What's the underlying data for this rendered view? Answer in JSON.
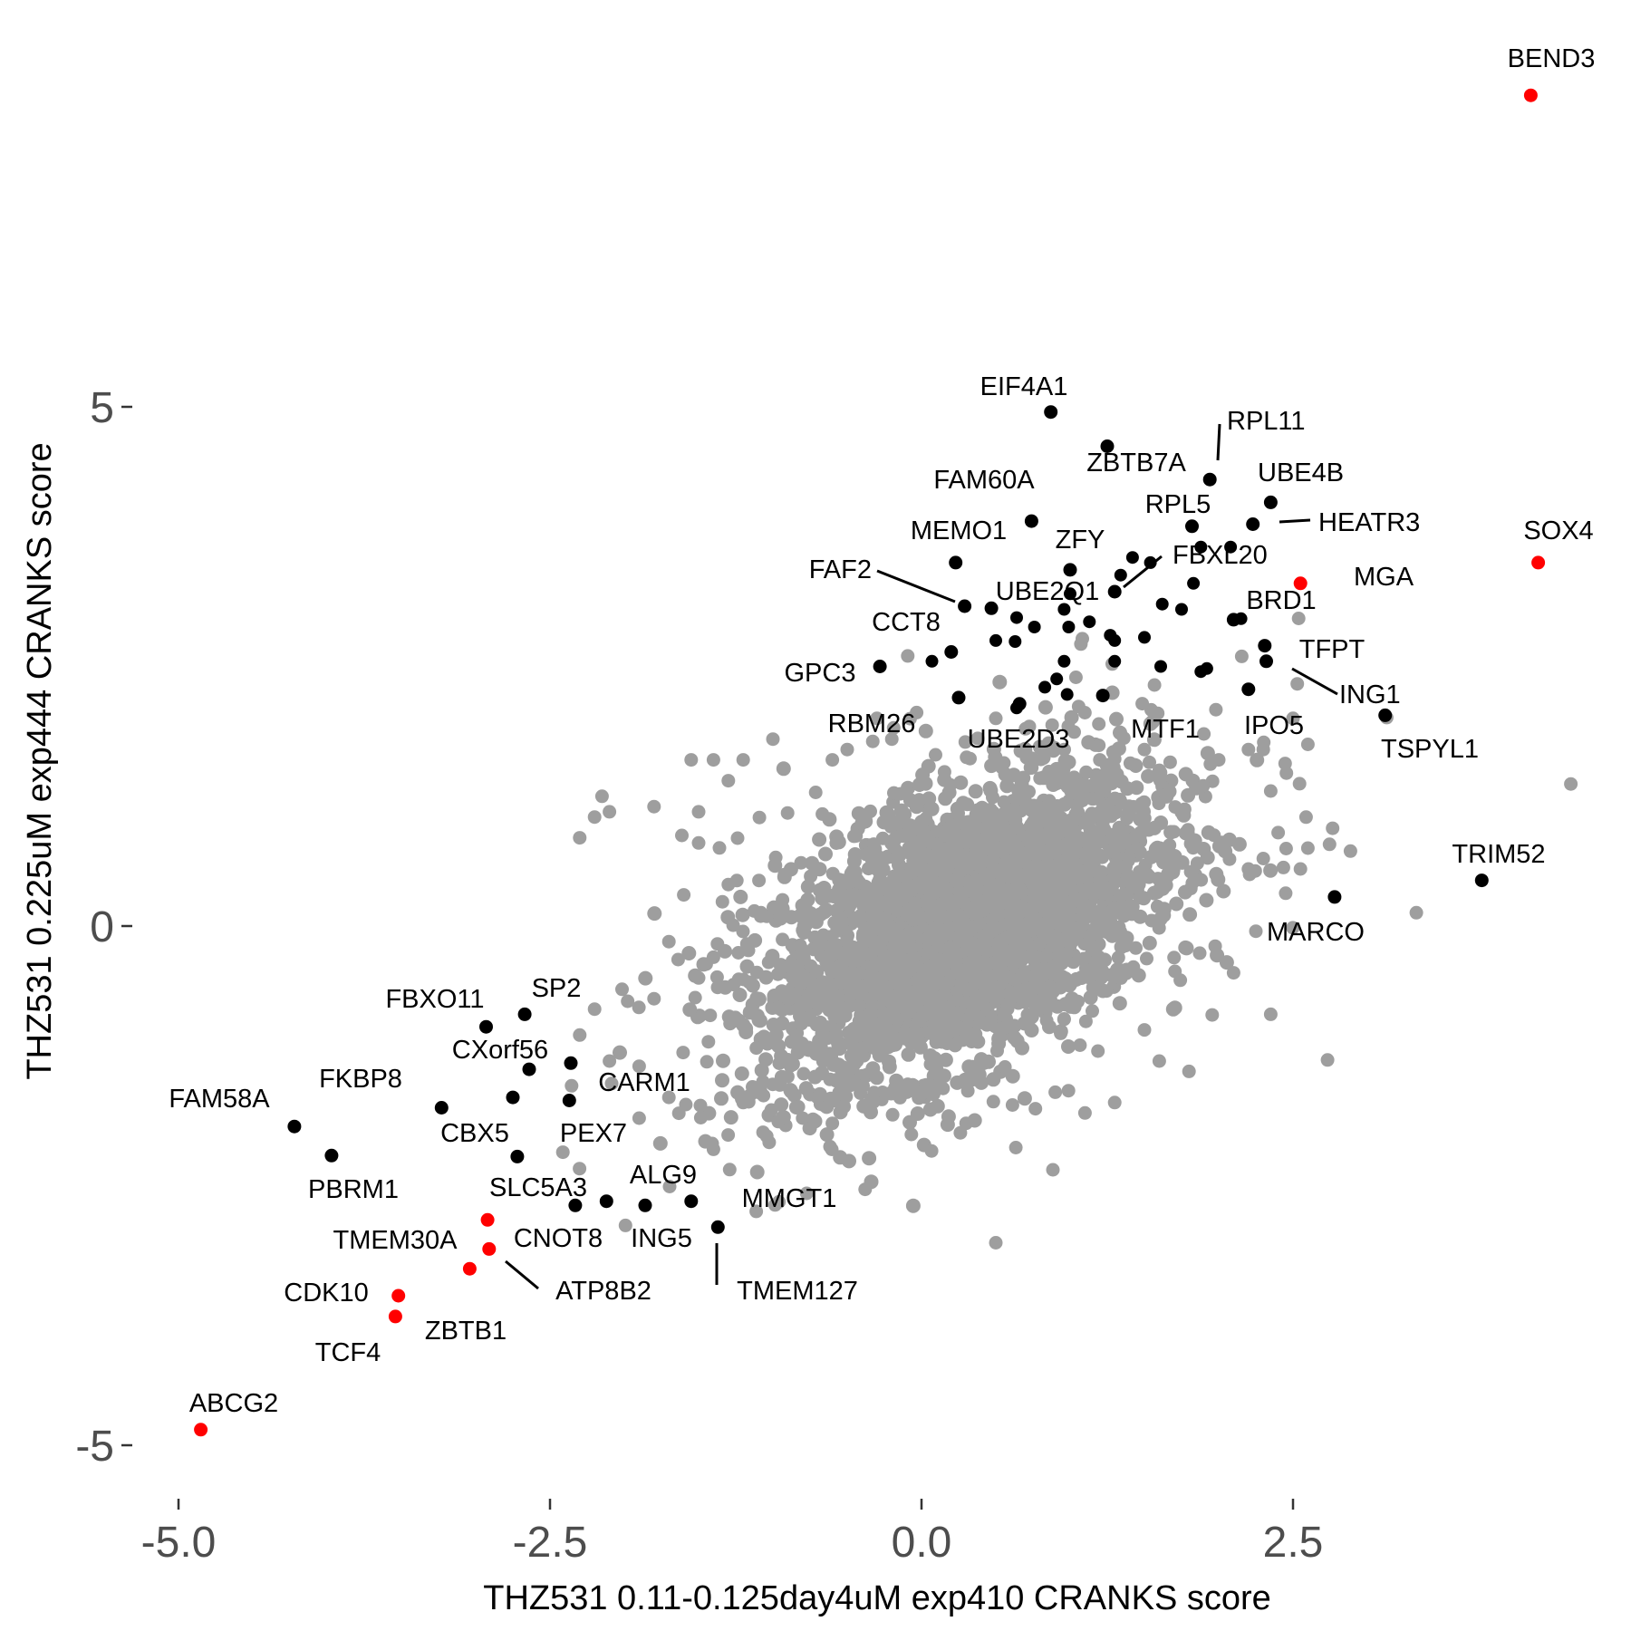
{
  "chart_data": {
    "type": "scatter",
    "title": "",
    "xlabel": "THZ531 0.11-0.125day4uM exp410 CRANKS score",
    "ylabel": "THZ531 0.225uM exp444 CRANKS score",
    "xlim": [
      -5.3,
      4.7
    ],
    "ylim": [
      -5.4,
      8.4
    ],
    "x_ticks": [
      {
        "value": -5,
        "label": "-5.0"
      },
      {
        "value": -2.5,
        "label": "-2.5"
      },
      {
        "value": 0,
        "label": "0.0"
      },
      {
        "value": 2.5,
        "label": "2.5"
      }
    ],
    "y_ticks": [
      {
        "value": -5,
        "label": "-5"
      },
      {
        "value": 0,
        "label": "0"
      },
      {
        "value": 5,
        "label": "5"
      }
    ],
    "grid": false,
    "legend": "none",
    "colors": {
      "background": "#9e9e9e",
      "labeled": "#000000",
      "highlighted": "#ff0000"
    },
    "background_cloud": {
      "description_points": 1,
      "center": [
        0.3,
        0.0
      ],
      "points": [
        [
          -2.1,
          1.1
        ],
        [
          -2.2,
          1.05
        ],
        [
          -2.3,
          0.85
        ],
        [
          -2.15,
          1.25
        ],
        [
          -1.55,
          1.6
        ],
        [
          -1.4,
          1.6
        ],
        [
          -1.5,
          1.1
        ],
        [
          -1.8,
          1.15
        ],
        [
          -1.3,
          1.4
        ],
        [
          -1.2,
          1.6
        ],
        [
          -1.0,
          1.8
        ],
        [
          -0.6,
          1.6
        ],
        [
          -0.5,
          1.7
        ],
        [
          -0.3,
          2.0
        ],
        [
          -0.2,
          1.8
        ],
        [
          0.5,
          2.0
        ],
        [
          0.7,
          1.9
        ],
        [
          1.2,
          1.6
        ],
        [
          1.5,
          1.7
        ],
        [
          1.6,
          1.5
        ],
        [
          1.9,
          1.85
        ],
        [
          2.0,
          1.6
        ],
        [
          2.2,
          1.7
        ],
        [
          2.3,
          1.7
        ],
        [
          2.5,
          2.0
        ],
        [
          2.6,
          1.75
        ],
        [
          2.35,
          1.3
        ],
        [
          2.4,
          0.9
        ],
        [
          2.6,
          0.75
        ],
        [
          2.55,
          0.55
        ],
        [
          2.3,
          0.65
        ],
        [
          2.2,
          0.55
        ],
        [
          2.25,
          -0.05
        ],
        [
          2.1,
          -0.45
        ],
        [
          2.35,
          -0.85
        ],
        [
          0.5,
          -3.05
        ],
        [
          -1.3,
          0.4
        ],
        [
          -1.4,
          -0.3
        ],
        [
          -1.5,
          -0.5
        ],
        [
          -1.6,
          0.3
        ],
        [
          -1.7,
          -0.15
        ],
        [
          -1.8,
          -0.7
        ],
        [
          -2.2,
          -0.8
        ],
        [
          -2.3,
          -1.05
        ],
        [
          -2.1,
          -1.3
        ],
        [
          -1.9,
          -1.35
        ],
        [
          -1.7,
          -1.65
        ],
        [
          -1.2,
          -1.7
        ],
        [
          -1.9,
          -1.85
        ],
        [
          -1.4,
          -2.15
        ],
        [
          -1.1,
          -1.6
        ],
        [
          -0.6,
          -1.9
        ],
        [
          -0.8,
          -1.85
        ],
        [
          -0.1,
          -1.6
        ],
        [
          0.3,
          -1.9
        ],
        [
          0.9,
          -1.6
        ],
        [
          1.1,
          -1.8
        ],
        [
          1.3,
          -1.7
        ],
        [
          1.6,
          -1.3
        ],
        [
          1.8,
          -1.4
        ],
        [
          1.5,
          -1.0
        ],
        [
          -0.9,
          -1.45
        ],
        [
          -0.7,
          -1.65
        ],
        [
          -1.5,
          0.8
        ]
      ]
    },
    "labeled_points": [
      {
        "gene": "BEND3",
        "x": 4.1,
        "y": 8.0,
        "highlight": true
      },
      {
        "gene": "SOX4",
        "x": 4.15,
        "y": 3.5,
        "highlight": true
      },
      {
        "gene": "MGA",
        "x": 2.55,
        "y": 3.3,
        "highlight": true
      },
      {
        "gene": "EIF4A1",
        "x": 0.87,
        "y": 4.95
      },
      {
        "gene": "RPL11",
        "x": 1.94,
        "y": 4.3
      },
      {
        "gene": "ZBTB7A",
        "x": 1.25,
        "y": 4.62
      },
      {
        "gene": "UBE4B",
        "x": 2.35,
        "y": 4.08
      },
      {
        "gene": "HEATR3",
        "x": 2.23,
        "y": 3.87
      },
      {
        "gene": "FAM60A",
        "x": 0.74,
        "y": 3.9
      },
      {
        "gene": "RPL5",
        "x": 1.82,
        "y": 3.85
      },
      {
        "gene": "MEMO1",
        "x": 0.23,
        "y": 3.5
      },
      {
        "gene": "ZFY",
        "x": 1.0,
        "y": 3.43
      },
      {
        "gene": "FBXL20",
        "x": 1.3,
        "y": 3.22
      },
      {
        "gene": "FAF2",
        "x": 0.29,
        "y": 3.08
      },
      {
        "gene": "UBE2Q1",
        "x": 0.47,
        "y": 3.06
      },
      {
        "gene": "CCT8",
        "x": 0.2,
        "y": 2.64
      },
      {
        "gene": "BRD1",
        "x": 2.1,
        "y": 2.95
      },
      {
        "gene": "TFPT",
        "x": 2.31,
        "y": 2.7
      },
      {
        "gene": "ING1",
        "x": 2.32,
        "y": 2.55
      },
      {
        "gene": "GPC3",
        "x": -0.28,
        "y": 2.5
      },
      {
        "gene": "RBM26",
        "x": 0.25,
        "y": 2.2
      },
      {
        "gene": "UBE2D3",
        "x": 0.66,
        "y": 2.14
      },
      {
        "gene": "MTF1",
        "x": 1.22,
        "y": 2.22
      },
      {
        "gene": "IPO5",
        "x": 2.2,
        "y": 2.28
      },
      {
        "gene": "TSPYL1",
        "x": 3.12,
        "y": 2.03
      },
      {
        "gene": "TRIM52",
        "x": 3.77,
        "y": 0.44
      },
      {
        "gene": "MARCO",
        "x": 2.78,
        "y": 0.28
      },
      {
        "gene": "FBXO11",
        "x": -2.93,
        "y": -0.97
      },
      {
        "gene": "SP2",
        "x": -2.67,
        "y": -0.85
      },
      {
        "gene": "CXorf56",
        "x": -2.64,
        "y": -1.38
      },
      {
        "gene": "CARM1",
        "x": -2.36,
        "y": -1.32
      },
      {
        "gene": "FKBP8",
        "x": -2.75,
        "y": -1.65
      },
      {
        "gene": "FAM58A",
        "x": -4.22,
        "y": -1.93
      },
      {
        "gene": "CBX5",
        "x": -3.23,
        "y": -1.75
      },
      {
        "gene": "PEX7",
        "x": -2.37,
        "y": -1.68
      },
      {
        "gene": "PBRM1",
        "x": -3.97,
        "y": -2.21
      },
      {
        "gene": "SLC5A3",
        "x": -2.72,
        "y": -2.22
      },
      {
        "gene": "ALG9",
        "x": -1.55,
        "y": -2.65
      },
      {
        "gene": "MMGT1",
        "x": -1.86,
        "y": -2.69
      },
      {
        "gene": "ING5",
        "x": -2.12,
        "y": -2.65
      },
      {
        "gene": "CNOT8",
        "x": -2.33,
        "y": -2.69
      },
      {
        "gene": "TMEM127",
        "x": -1.37,
        "y": -2.9
      },
      {
        "gene": "TMEM30A",
        "x": -2.92,
        "y": -2.83,
        "highlight": true
      },
      {
        "gene": "ATP8B2",
        "x": -2.91,
        "y": -3.11,
        "highlight": true
      },
      {
        "gene": "CDK10",
        "x": -3.04,
        "y": -3.3,
        "highlight": true
      },
      {
        "gene": "ZBTB1",
        "x": -3.52,
        "y": -3.56,
        "highlight": true
      },
      {
        "gene": "TCF4",
        "x": -3.54,
        "y": -3.76,
        "highlight": true
      },
      {
        "gene": "ABCG2",
        "x": -4.85,
        "y": -4.85,
        "highlight": true
      }
    ],
    "extra_black_points": [
      [
        0.47,
        3.06
      ],
      [
        0.64,
        2.97
      ],
      [
        0.76,
        2.88
      ],
      [
        0.63,
        2.74
      ],
      [
        0.99,
        2.88
      ],
      [
        1.13,
        2.93
      ],
      [
        1.27,
        2.8
      ],
      [
        1.5,
        2.78
      ],
      [
        1.62,
        3.1
      ],
      [
        1.75,
        3.05
      ],
      [
        1.83,
        3.3
      ],
      [
        1.54,
        3.5
      ],
      [
        1.88,
        3.65
      ],
      [
        2.08,
        3.65
      ],
      [
        0.96,
        3.05
      ],
      [
        1.0,
        3.2
      ],
      [
        1.34,
        3.38
      ],
      [
        1.42,
        3.55
      ],
      [
        1.88,
        2.45
      ],
      [
        0.96,
        2.55
      ],
      [
        1.3,
        2.75
      ],
      [
        1.61,
        2.5
      ],
      [
        0.91,
        2.38
      ],
      [
        1.3,
        2.55
      ],
      [
        0.83,
        2.3
      ],
      [
        0.98,
        2.23
      ],
      [
        0.64,
        2.1
      ],
      [
        0.5,
        2.75
      ],
      [
        0.07,
        2.55
      ],
      [
        2.15,
        2.96
      ],
      [
        1.92,
        2.48
      ]
    ]
  }
}
